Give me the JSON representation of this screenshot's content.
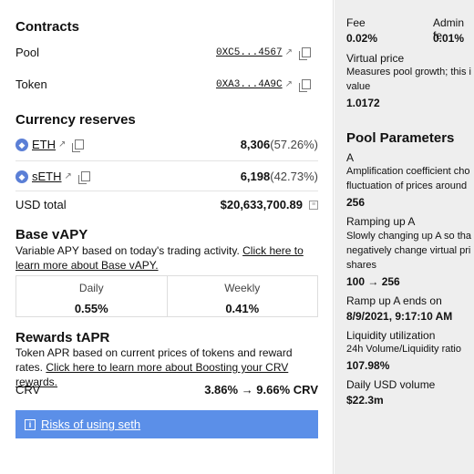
{
  "contracts": {
    "title": "Contracts",
    "pool_label": "Pool",
    "pool_address": "0XC5...4567",
    "token_label": "Token",
    "token_address": "0XA3...4A9C"
  },
  "reserves": {
    "title": "Currency reserves",
    "items": [
      {
        "symbol": "ETH",
        "amount": "8,306",
        "pct": "(57.26%)"
      },
      {
        "symbol": "sETH",
        "amount": "6,198",
        "pct": "(42.73%)"
      }
    ],
    "usd_total_label": "USD total",
    "usd_total": "$20,633,700.89"
  },
  "base_vapy": {
    "title": "Base vAPY",
    "desc_prefix": "Variable APY based on today's trading activity. ",
    "desc_link": "Click here to learn more about Base vAPY.",
    "daily_label": "Daily",
    "daily_value": "0.55%",
    "weekly_label": "Weekly",
    "weekly_value": "0.41%"
  },
  "rewards": {
    "title": "Rewards tAPR",
    "desc_prefix": "Token APR based on current prices of tokens and reward rates. ",
    "desc_link": "Click here to learn more about Boosting your CRV rewards.",
    "crv_label": "CRV",
    "crv_value": "3.86% → 9.66% CRV"
  },
  "risk": {
    "link": "Risks of using seth"
  },
  "fees": {
    "fee_label": "Fee",
    "fee_value": "0.02%",
    "admin_label": "Admin fe",
    "admin_value": "0.01%",
    "virtual_label": "Virtual price",
    "virtual_desc_1": "Measures pool growth; this i",
    "virtual_desc_2": "value",
    "virtual_value": "1.0172"
  },
  "pool_params": {
    "title": "Pool Parameters",
    "a_label": "A",
    "a_desc_1": "Amplification coefficient cho",
    "a_desc_2": "fluctuation of prices around",
    "a_value": "256",
    "ramp_label": "Ramping up A",
    "ramp_desc_1": "Slowly changing up A so tha",
    "ramp_desc_2": "negatively change virtual pri",
    "ramp_desc_3": "shares",
    "ramp_value": "100 → 256",
    "ramp_end_label": "Ramp up A ends on",
    "ramp_end_value": "8/9/2021, 9:17:10 AM",
    "liq_label": "Liquidity utilization",
    "liq_desc": "24h Volume/Liquidity ratio",
    "liq_value": "107.98%",
    "daily_vol_label": "Daily USD volume",
    "daily_vol_value": "$22.3m"
  }
}
